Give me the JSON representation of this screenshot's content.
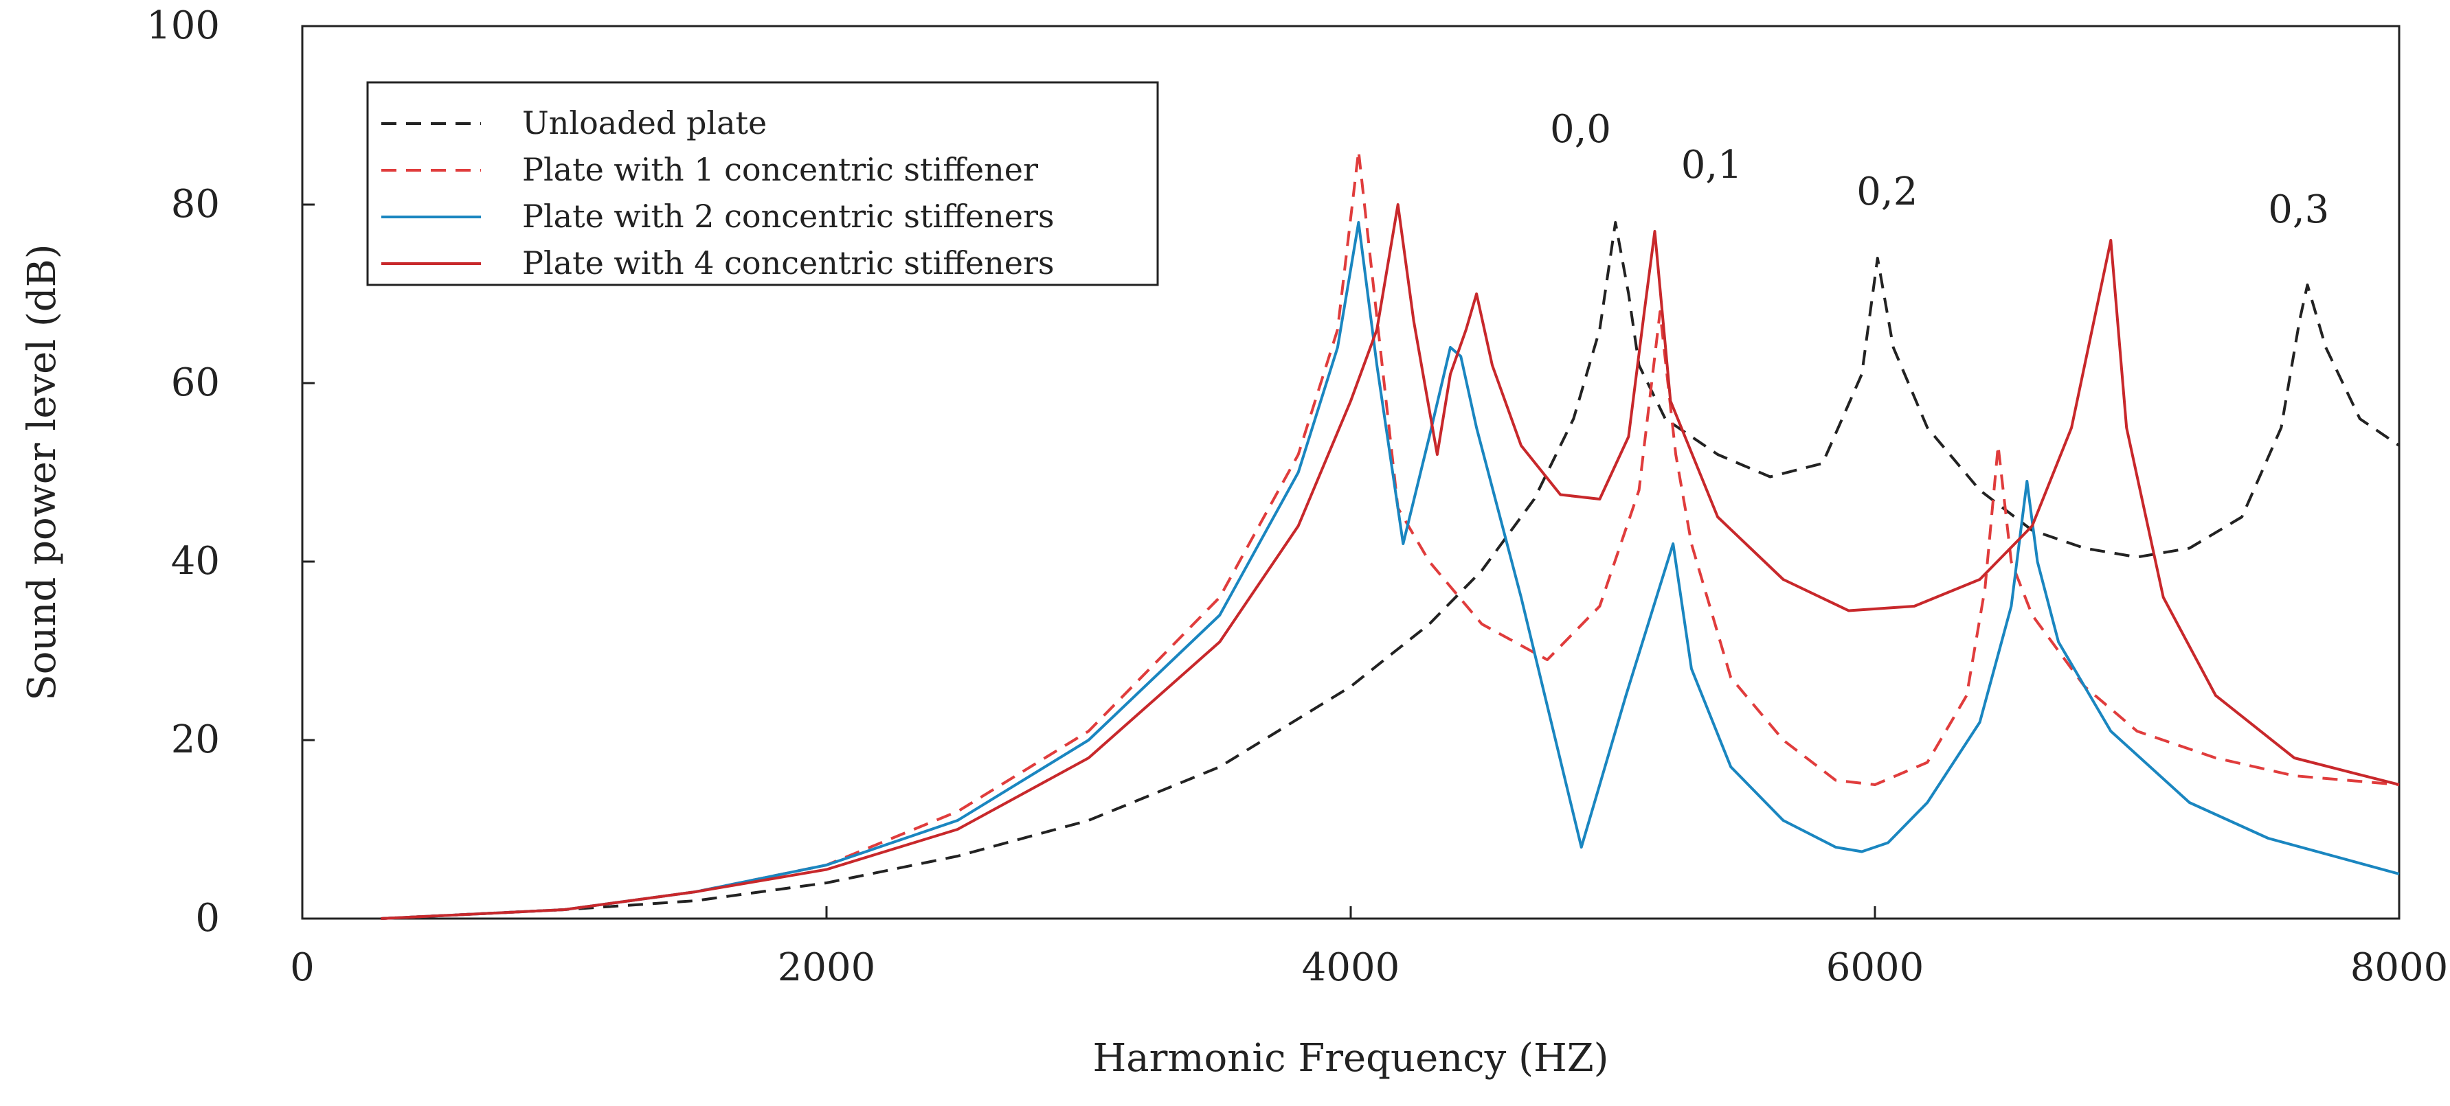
{
  "chart_data": {
    "type": "line",
    "title": "",
    "xlabel": "Harmonic Frequency (HZ)",
    "ylabel": "Sound power level (dB)",
    "xlim": [
      0,
      8000
    ],
    "ylim": [
      0,
      100
    ],
    "xticks": [
      0,
      2000,
      4000,
      6000,
      8000
    ],
    "yticks": [
      0,
      20,
      40,
      60,
      80,
      100
    ],
    "grid": false,
    "legend_position": "top-left",
    "series": [
      {
        "name": "Unloaded plate",
        "color": "#222222",
        "style": "dashed",
        "x": [
          300,
          1000,
          1500,
          2000,
          2500,
          3000,
          3500,
          4000,
          4300,
          4500,
          4700,
          4850,
          4950,
          5010,
          5060,
          5100,
          5200,
          5400,
          5600,
          5800,
          5950,
          6010,
          6070,
          6200,
          6400,
          6600,
          6800,
          7000,
          7200,
          7400,
          7550,
          7620,
          7650,
          7720,
          7850,
          8000
        ],
        "y": [
          0,
          1,
          2,
          4,
          7,
          11,
          17,
          26,
          33,
          39,
          47,
          56,
          66,
          78,
          70,
          62,
          56,
          52,
          49.5,
          51,
          61,
          74,
          64,
          55,
          48,
          43.5,
          41.5,
          40.5,
          41.5,
          45,
          55,
          67,
          71,
          64,
          56,
          53
        ]
      },
      {
        "name": "Plate with 1 concentric stiffener",
        "color": "#e03c3c",
        "style": "dashed",
        "x": [
          300,
          1000,
          1500,
          2000,
          2500,
          3000,
          3500,
          3800,
          3950,
          4030,
          4090,
          4180,
          4300,
          4500,
          4750,
          4950,
          5100,
          5180,
          5240,
          5300,
          5450,
          5650,
          5850,
          6000,
          6200,
          6350,
          6420,
          6470,
          6520,
          6600,
          6800,
          7000,
          7300,
          7600,
          8000
        ],
        "y": [
          0,
          1,
          3,
          6,
          12,
          21,
          36,
          52,
          66,
          86,
          70,
          46,
          40,
          33,
          29,
          35,
          48,
          68,
          52,
          42,
          27,
          20,
          15.5,
          15,
          17.5,
          25,
          37,
          53,
          40,
          34,
          26,
          21,
          18,
          16,
          15
        ]
      },
      {
        "name": "Plate with 2 concentric stiffeners",
        "color": "#1a86c0",
        "style": "solid",
        "x": [
          300,
          1000,
          1500,
          2000,
          2500,
          3000,
          3500,
          3800,
          3950,
          4030,
          4100,
          4200,
          4300,
          4380,
          4420,
          4480,
          4650,
          4880,
          5050,
          5230,
          5300,
          5450,
          5650,
          5850,
          5950,
          6050,
          6200,
          6400,
          6520,
          6580,
          6620,
          6700,
          6900,
          7200,
          7500,
          8000
        ],
        "y": [
          0,
          1,
          3,
          6,
          11,
          20,
          34,
          50,
          64,
          78,
          62,
          42,
          54,
          64,
          63,
          55,
          36,
          8,
          25,
          42,
          28,
          17,
          11,
          8,
          7.5,
          8.5,
          13,
          22,
          35,
          49,
          40,
          31,
          21,
          13,
          9,
          5
        ]
      },
      {
        "name": "Plate with 4 concentric stiffeners",
        "color": "#c8282b",
        "style": "solid",
        "x": [
          300,
          1000,
          1500,
          2000,
          2500,
          3000,
          3500,
          3800,
          4000,
          4100,
          4180,
          4240,
          4300,
          4330,
          4380,
          4440,
          4480,
          4540,
          4650,
          4800,
          4950,
          5060,
          5120,
          5160,
          5220,
          5400,
          5650,
          5900,
          6150,
          6400,
          6600,
          6750,
          6850,
          6900,
          6960,
          7100,
          7300,
          7600,
          8000
        ],
        "y": [
          0,
          1,
          3,
          5.5,
          10,
          18,
          31,
          44,
          58,
          66,
          80,
          67,
          57,
          52,
          61,
          66,
          70,
          62,
          53,
          47.5,
          47,
          54,
          68,
          77,
          58,
          45,
          38,
          34.5,
          35,
          38,
          44,
          55,
          69,
          76,
          55,
          36,
          25,
          18,
          15
        ]
      }
    ],
    "annotations": [
      {
        "text": "0,0",
        "x": 4760,
        "y": 87
      },
      {
        "text": "0,1",
        "x": 5260,
        "y": 83
      },
      {
        "text": "0,2",
        "x": 5930,
        "y": 80
      },
      {
        "text": "0,3",
        "x": 7500,
        "y": 78
      }
    ]
  }
}
